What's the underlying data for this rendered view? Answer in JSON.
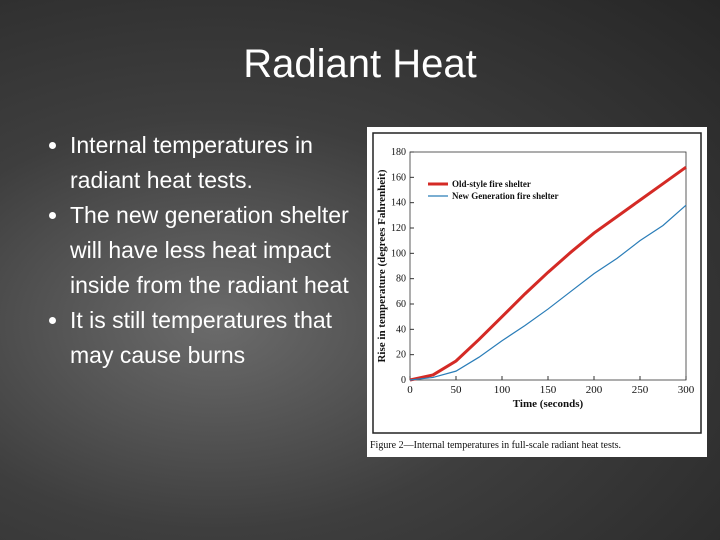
{
  "slide": {
    "title": "Radiant Heat",
    "bullets": [
      "Internal temperatures in radiant heat tests.",
      "The new generation shelter will have less heat impact inside from the radiant heat",
      "It is still temperatures that may cause burns"
    ]
  },
  "chart_data": {
    "type": "line",
    "caption": "Figure 2—Internal temperatures in full-scale radiant heat tests.",
    "xlabel": "Time (seconds)",
    "ylabel": "Rise in temperature (degrees Fahrenheit)",
    "x": [
      0,
      25,
      50,
      75,
      100,
      125,
      150,
      175,
      200,
      225,
      250,
      275,
      300
    ],
    "series": [
      {
        "name": "Old-style fire shelter",
        "color": "#d42a25",
        "values": [
          0,
          4,
          15,
          32,
          50,
          68,
          85,
          101,
          116,
          129,
          142,
          155,
          168
        ]
      },
      {
        "name": "New Generation fire shelter",
        "color": "#2a7db8",
        "values": [
          0,
          2,
          7,
          18,
          31,
          43,
          56,
          70,
          84,
          96,
          110,
          122,
          138
        ]
      }
    ],
    "xlim": [
      0,
      300
    ],
    "xticks": [
      0,
      50,
      100,
      150,
      200,
      250,
      300
    ],
    "ylim": [
      0,
      180
    ],
    "yticks": [
      0,
      20,
      40,
      60,
      80,
      100,
      120,
      140,
      160,
      180
    ],
    "legend": "upper-left"
  }
}
